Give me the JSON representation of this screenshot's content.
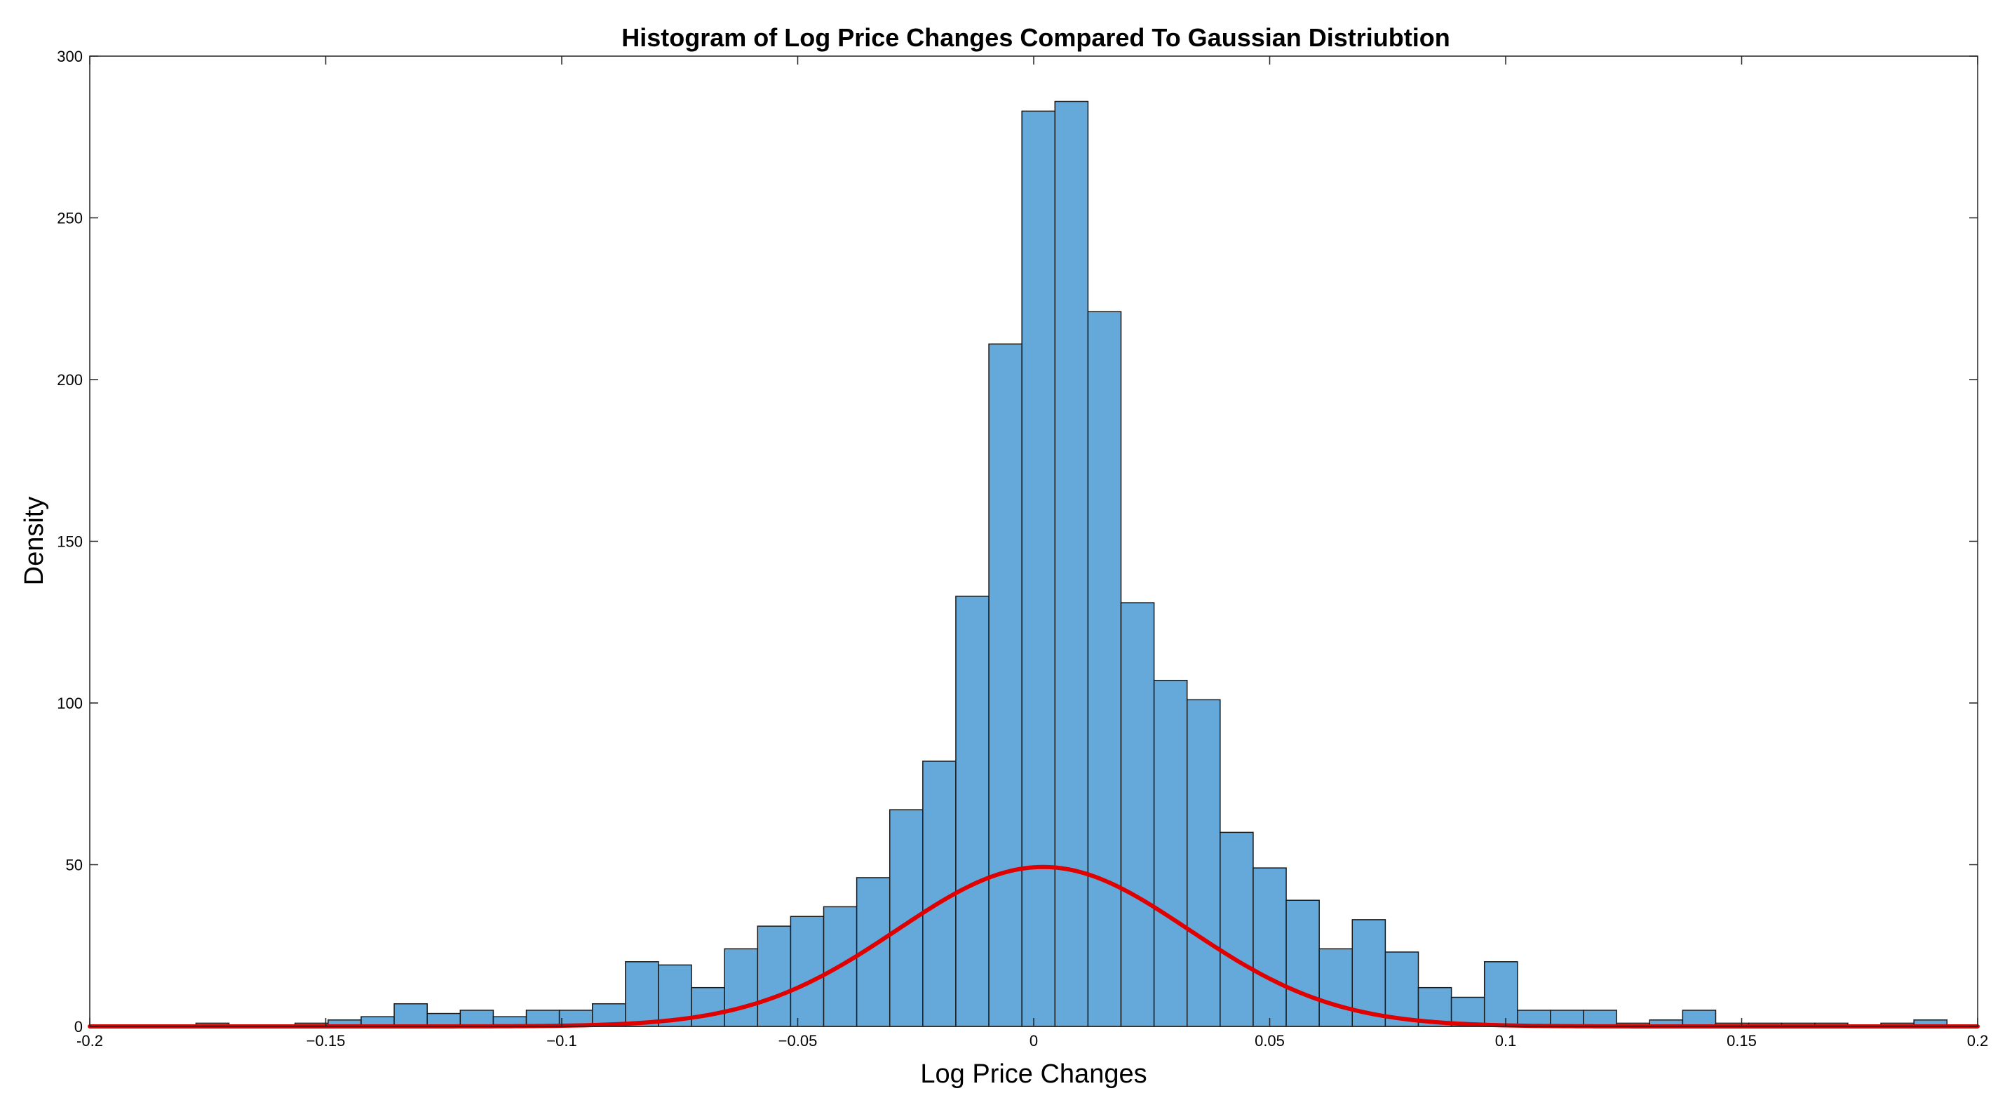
{
  "chart_data": {
    "type": "bar",
    "title": "Histogram of Log Price Changes Compared To Gaussian Distriubtion",
    "xlabel": "Log Price Changes",
    "ylabel": "Density",
    "xlim": [
      -0.2,
      0.2
    ],
    "ylim": [
      0,
      300
    ],
    "xticks": [
      -0.2,
      -0.15,
      -0.1,
      -0.05,
      0,
      0.05,
      0.1,
      0.15,
      0.2
    ],
    "xtick_labels": [
      "-0.2",
      "−0.15",
      "−0.1",
      "−0.05",
      "0",
      "0.05",
      "0.1",
      "0.15",
      "0.2"
    ],
    "yticks": [
      0,
      50,
      100,
      150,
      200,
      250,
      300
    ],
    "ytick_labels": [
      "0",
      "50",
      "100",
      "150",
      "200",
      "250",
      "300"
    ],
    "grid": false,
    "bin_edges": [
      -0.1775,
      -0.1705,
      -0.1635,
      -0.1565,
      -0.1495,
      -0.1425,
      -0.1355,
      -0.1285,
      -0.1215,
      -0.1145,
      -0.1075,
      -0.1005,
      -0.0935,
      -0.0865,
      -0.0795,
      -0.0725,
      -0.0655,
      -0.0585,
      -0.0515,
      -0.0445,
      -0.0375,
      -0.0305,
      -0.0235,
      -0.0165,
      -0.0095,
      -0.0025,
      0.0045,
      0.0115,
      0.0185,
      0.0255,
      0.0325,
      0.0395,
      0.0465,
      0.0535,
      0.0605,
      0.0675,
      0.0745,
      0.0815,
      0.0885,
      0.0955,
      0.1025,
      0.1095,
      0.1165,
      0.1235,
      0.1305,
      0.1375,
      0.1445,
      0.1515,
      0.1585,
      0.1655,
      0.1725,
      0.1795,
      0.1865,
      0.1935
    ],
    "values": [
      1,
      0,
      0,
      1,
      2,
      3,
      7,
      4,
      5,
      3,
      5,
      5,
      7,
      20,
      19,
      12,
      24,
      31,
      34,
      37,
      46,
      67,
      82,
      133,
      211,
      283,
      286,
      221,
      131,
      107,
      101,
      60,
      49,
      39,
      24,
      33,
      23,
      12,
      9,
      20,
      5,
      5,
      5,
      1,
      2,
      5,
      1,
      1,
      1,
      1,
      0,
      1,
      0
    ],
    "extra_bars": [
      {
        "x0": 0.1865,
        "x1": 0.1935,
        "value": 2
      }
    ],
    "gaussian": {
      "mean": 0.002,
      "peak": 49.3,
      "sigma": 0.0309
    }
  }
}
